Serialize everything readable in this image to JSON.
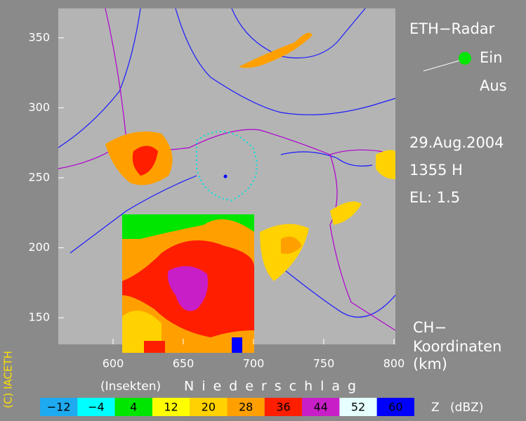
{
  "header": {
    "title": "ETH−Radar",
    "switch_on": "Ein",
    "switch_off": "Aus",
    "date": "29.Aug.2004",
    "time": "1355 H",
    "elevation": "EL: 1.5"
  },
  "coordinates": {
    "line1": "CH−",
    "line2": "Koordinaten",
    "line3": "(km)"
  },
  "map": {
    "xlim": [
      561,
      801
    ],
    "ylim": [
      131,
      371
    ],
    "xticks": [
      600,
      650,
      700,
      750,
      800
    ],
    "yticks": [
      150,
      200,
      250,
      300,
      350
    ]
  },
  "legend": {
    "insects": "(Insekten)",
    "precipitation": "Niederschlag",
    "unit": "Z (dBZ)",
    "items": [
      {
        "label": "−12",
        "color": "#1eaaf0"
      },
      {
        "label": "−4",
        "color": "#00ffff"
      },
      {
        "label": "4",
        "color": "#00e600"
      },
      {
        "label": "12",
        "color": "#ffff00"
      },
      {
        "label": "20",
        "color": "#ffd200"
      },
      {
        "label": "28",
        "color": "#ffa000"
      },
      {
        "label": "36",
        "color": "#ff1e00"
      },
      {
        "label": "44",
        "color": "#c81ec8"
      },
      {
        "label": "52",
        "color": "#e6ffff"
      },
      {
        "label": "60",
        "color": "#0000ff"
      }
    ]
  },
  "copyright": "(C) IACETH"
}
